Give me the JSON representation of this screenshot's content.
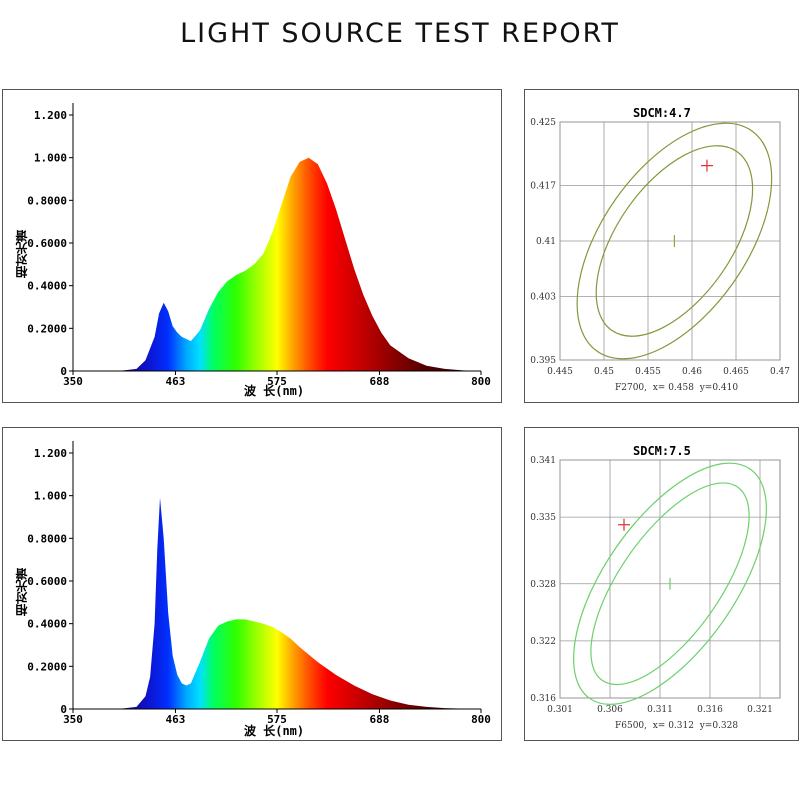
{
  "title": "LIGHT SOURCE TEST REPORT",
  "spectra": [
    {
      "ylabel": "相对光谱",
      "xlabel": "波 长(nm)",
      "ytick_labels": [
        "0",
        "0.2000",
        "0.4000",
        "0.6000",
        "0.8000",
        "1.000",
        "1.200"
      ],
      "xtick_labels": [
        "350",
        "463",
        "575",
        "688",
        "800"
      ]
    },
    {
      "ylabel": "相对光谱",
      "xlabel": "波 长(nm)",
      "ytick_labels": [
        "0",
        "0.2000",
        "0.4000",
        "0.6000",
        "0.8000",
        "1.000",
        "1.200"
      ],
      "xtick_labels": [
        "350",
        "463",
        "575",
        "688",
        "800"
      ]
    }
  ],
  "cie": [
    {
      "sdcm": "SDCM:4.7",
      "footer": "F2700,  x= 0.458  y=0.410",
      "ytick_labels": [
        "0.425",
        "0.417",
        "0.41",
        "0.403",
        "0.395"
      ],
      "xtick_labels": [
        "0.445",
        "0.45",
        "0.455",
        "0.46",
        "0.465",
        "0.47"
      ],
      "ellipse_color": "#7f9a3a",
      "marker_color": "#e03030",
      "center_color": "#8aa83a"
    },
    {
      "sdcm": "SDCM:7.5",
      "footer": "F6500,  x= 0.312  y=0.328",
      "ytick_labels": [
        "0.341",
        "0.335",
        "0.328",
        "0.322",
        "0.316"
      ],
      "xtick_labels": [
        "0.301",
        "0.306",
        "0.311",
        "0.316",
        "0.321"
      ],
      "ellipse_color": "#6cd06c",
      "marker_color": "#e03030",
      "center_color": "#6cd06c"
    }
  ],
  "chart_data": [
    {
      "type": "area",
      "title": "",
      "xlabel": "波 长(nm)",
      "ylabel": "相对光谱",
      "xlim": [
        350,
        800
      ],
      "ylim": [
        0,
        1.2
      ],
      "x_ticks": [
        350,
        463,
        575,
        688,
        800
      ],
      "y_ticks": [
        0,
        0.2,
        0.4,
        0.6,
        0.8,
        1.0,
        1.2
      ],
      "fill": "visible-spectrum color gradient",
      "x": [
        350,
        400,
        420,
        430,
        440,
        445,
        450,
        455,
        460,
        465,
        470,
        480,
        490,
        500,
        510,
        520,
        530,
        540,
        550,
        560,
        570,
        580,
        590,
        600,
        610,
        620,
        630,
        640,
        650,
        660,
        670,
        680,
        690,
        700,
        720,
        740,
        760,
        780,
        800
      ],
      "y": [
        0,
        0,
        0.01,
        0.05,
        0.16,
        0.27,
        0.32,
        0.28,
        0.21,
        0.18,
        0.16,
        0.14,
        0.19,
        0.29,
        0.37,
        0.42,
        0.45,
        0.47,
        0.5,
        0.55,
        0.65,
        0.78,
        0.91,
        0.98,
        1.0,
        0.97,
        0.88,
        0.76,
        0.62,
        0.48,
        0.36,
        0.26,
        0.18,
        0.12,
        0.06,
        0.025,
        0.01,
        0.003,
        0.0
      ]
    },
    {
      "type": "area",
      "title": "",
      "xlabel": "波 长(nm)",
      "ylabel": "相对光谱",
      "xlim": [
        350,
        800
      ],
      "ylim": [
        0,
        1.2
      ],
      "x_ticks": [
        350,
        463,
        575,
        688,
        800
      ],
      "y_ticks": [
        0,
        0.2,
        0.4,
        0.6,
        0.8,
        1.0,
        1.2
      ],
      "fill": "visible-spectrum color gradient",
      "x": [
        350,
        400,
        420,
        430,
        435,
        440,
        443,
        446,
        450,
        455,
        460,
        465,
        470,
        475,
        480,
        490,
        500,
        510,
        520,
        530,
        540,
        550,
        560,
        570,
        580,
        590,
        600,
        620,
        640,
        660,
        680,
        700,
        720,
        740,
        760,
        780,
        800
      ],
      "y": [
        0,
        0,
        0.01,
        0.06,
        0.15,
        0.4,
        0.75,
        0.99,
        0.8,
        0.45,
        0.25,
        0.16,
        0.12,
        0.11,
        0.12,
        0.22,
        0.33,
        0.39,
        0.41,
        0.42,
        0.42,
        0.41,
        0.4,
        0.385,
        0.36,
        0.33,
        0.29,
        0.22,
        0.16,
        0.11,
        0.07,
        0.04,
        0.02,
        0.01,
        0.004,
        0.002,
        0.0
      ]
    },
    {
      "type": "scatter",
      "title": "SDCM:4.7",
      "xlim": [
        0.445,
        0.47
      ],
      "ylim": [
        0.395,
        0.425
      ],
      "x_ticks": [
        0.445,
        0.45,
        0.455,
        0.46,
        0.465,
        0.47
      ],
      "y_ticks": [
        0.395,
        0.403,
        0.41,
        0.417,
        0.425
      ],
      "grid": true,
      "reference": {
        "name": "F2700",
        "x": 0.458,
        "y": 0.41
      },
      "measured_point": {
        "x": 0.4617,
        "y": 0.4195
      },
      "ellipses": [
        {
          "cx": 0.458,
          "cy": 0.41,
          "rx_deg_note": "inner",
          "semi_major": 0.0124,
          "semi_minor": 0.0065,
          "angle_deg": 55
        },
        {
          "cx": 0.458,
          "cy": 0.41,
          "rx_deg_note": "outer",
          "semi_major": 0.0153,
          "semi_minor": 0.0082,
          "angle_deg": 55
        }
      ]
    },
    {
      "type": "scatter",
      "title": "SDCM:7.5",
      "xlim": [
        0.301,
        0.323
      ],
      "ylim": [
        0.316,
        0.341
      ],
      "x_ticks": [
        0.301,
        0.306,
        0.311,
        0.316,
        0.321
      ],
      "y_ticks": [
        0.316,
        0.322,
        0.328,
        0.335,
        0.341
      ],
      "grid": true,
      "reference": {
        "name": "F6500",
        "x": 0.312,
        "y": 0.328
      },
      "measured_point": {
        "x": 0.3074,
        "y": 0.3342
      },
      "ellipses": [
        {
          "cx": 0.312,
          "cy": 0.328,
          "rx_deg_note": "inner",
          "semi_major": 0.0118,
          "semi_minor": 0.005,
          "angle_deg": 55
        },
        {
          "cx": 0.312,
          "cy": 0.328,
          "rx_deg_note": "outer",
          "semi_major": 0.014,
          "semi_minor": 0.0065,
          "angle_deg": 55
        }
      ]
    }
  ]
}
